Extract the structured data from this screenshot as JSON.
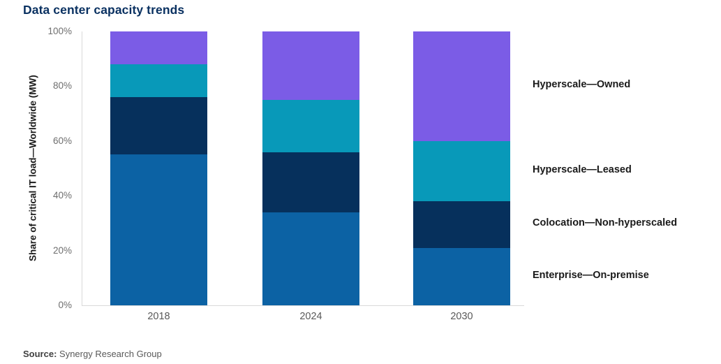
{
  "title": "Data center capacity trends",
  "source": {
    "label": "Source:",
    "text": "Synergy Research Group"
  },
  "colors": {
    "enterprise": "#0C62A4",
    "colocation": "#06305C",
    "hyperscale_leased": "#0899B9",
    "hyperscale_owned": "#7B5CE6",
    "title_text": "#0A3161",
    "axis_line": "#D9D9D9",
    "tick_label": "#6E6E6E",
    "legend_text": "#1A1A1A"
  },
  "chart_data": {
    "type": "bar",
    "stacked": true,
    "title": "Data center capacity trends",
    "categories": [
      "2018",
      "2024",
      "2030"
    ],
    "series": [
      {
        "name": "Enterprise—On-premise",
        "color_key": "enterprise",
        "values": [
          55,
          34,
          21
        ]
      },
      {
        "name": "Colocation—Non-hyperscaled",
        "color_key": "colocation",
        "values": [
          21,
          22,
          17
        ]
      },
      {
        "name": "Hyperscale—Leased",
        "color_key": "hyperscale_leased",
        "values": [
          12,
          19,
          22
        ]
      },
      {
        "name": "Hyperscale—Owned",
        "color_key": "hyperscale_owned",
        "values": [
          12,
          25,
          40
        ]
      }
    ],
    "xlabel": "",
    "ylabel": "Share of critical IT load—Worldwide (MW)",
    "ylim": [
      0,
      100
    ],
    "yticks": [
      "0%",
      "20%",
      "40%",
      "60%",
      "80%",
      "100%"
    ],
    "grid": false,
    "legend_position": "right-of-plot, aligned to 2030 bar segments"
  }
}
